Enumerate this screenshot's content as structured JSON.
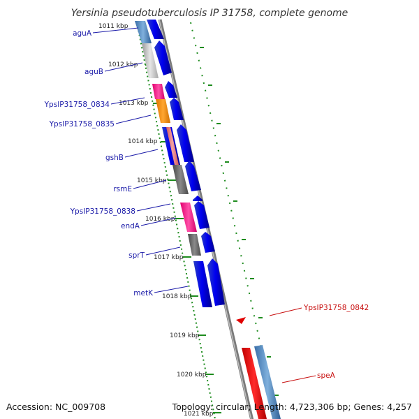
{
  "title": "Yersinia pseudotuberculosis IP 31758, complete genome",
  "footer": {
    "accession": "Accession: NC_009708",
    "topology": "Topology: circular; Length: 4,723,306 bp; Genes: 4,257"
  },
  "colors": {
    "backbone": "#888888",
    "tick": "#1e8c1e",
    "forward_gene": "#0000ee",
    "reverse_gene": "#ee0000",
    "left_label": "#1a1aa8",
    "right_label": "#c81010"
  },
  "kbp_ticks": [
    {
      "label": "1011 kbp",
      "kbp": 1011
    },
    {
      "label": "1012 kbp",
      "kbp": 1012
    },
    {
      "label": "1013 kbp",
      "kbp": 1013
    },
    {
      "label": "1014 kbp",
      "kbp": 1014
    },
    {
      "label": "1015 kbp",
      "kbp": 1015
    },
    {
      "label": "1016 kbp",
      "kbp": 1016
    },
    {
      "label": "1017 kbp",
      "kbp": 1017
    },
    {
      "label": "1018 kbp",
      "kbp": 1018
    },
    {
      "label": "1019 kbp",
      "kbp": 1019
    },
    {
      "label": "1020 kbp",
      "kbp": 1020
    },
    {
      "label": "1021 kbp",
      "kbp": 1021
    }
  ],
  "left_genes": [
    "aguA",
    "aguB",
    "YpsIP31758_0834",
    "YpsIP31758_0835",
    "gshB",
    "rsmE",
    "YpsIP31758_0838",
    "endA",
    "sprT",
    "metK"
  ],
  "right_genes": [
    "YpsIP31758_0842",
    "speA"
  ]
}
